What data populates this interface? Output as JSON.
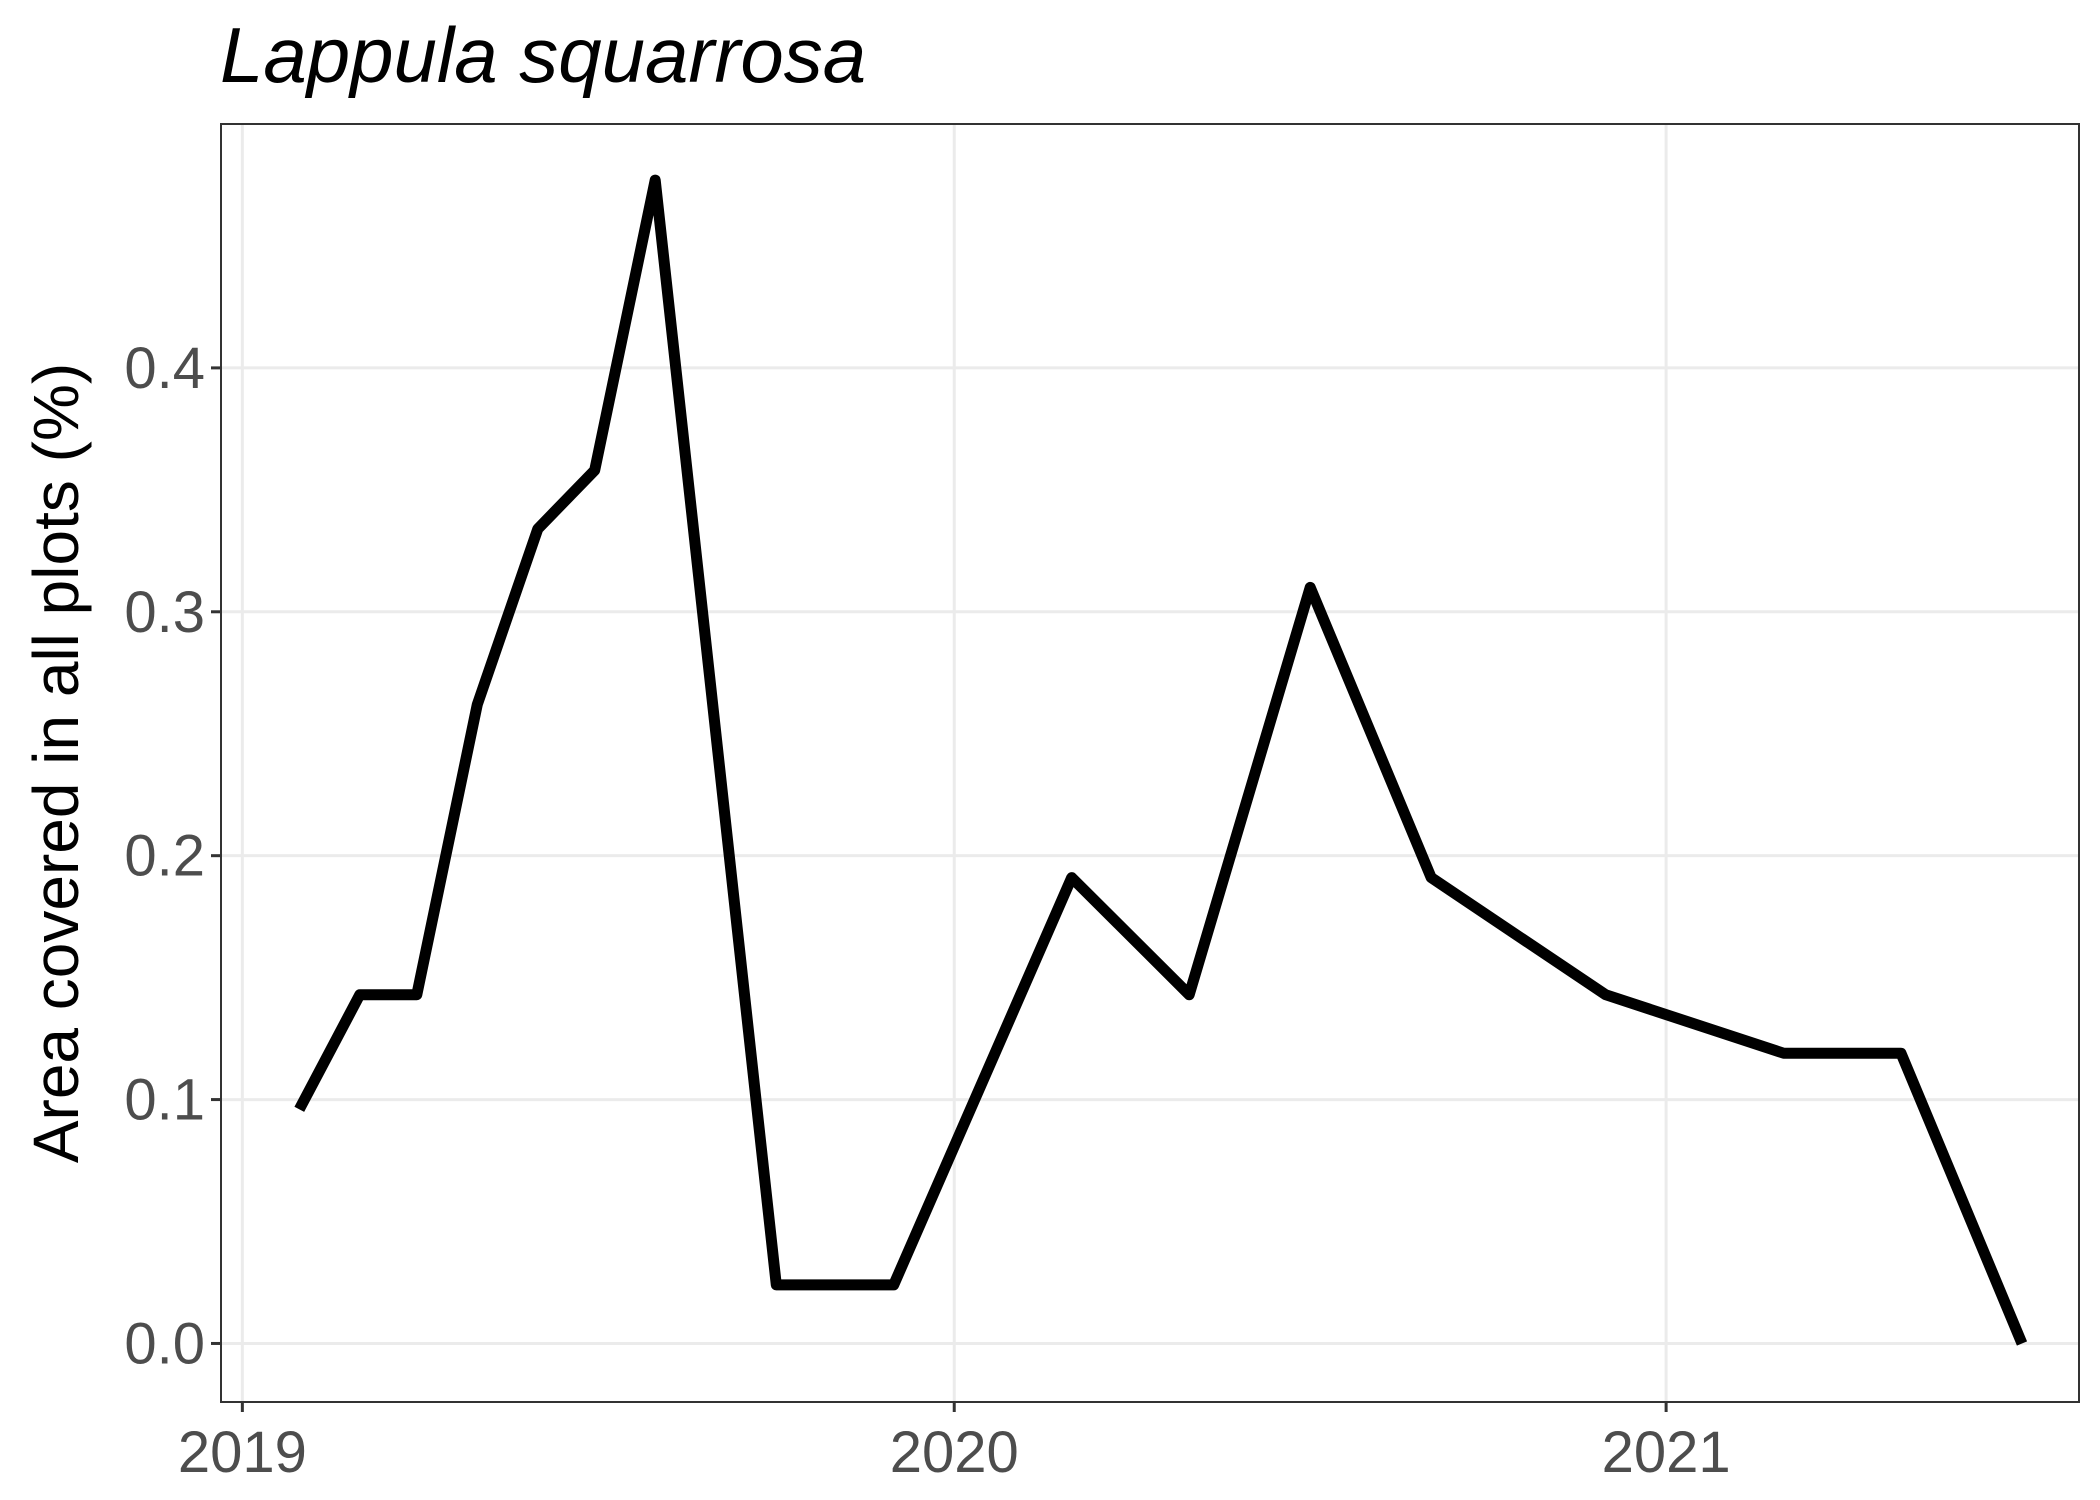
{
  "chart_data": {
    "type": "line",
    "title": "Lappula squarrosa",
    "xlabel": "",
    "ylabel": "Area covered in all plots (%)",
    "xlim": [
      2018.97,
      2021.58
    ],
    "ylim": [
      -0.024,
      0.5
    ],
    "x_ticks": [
      {
        "value": 2019,
        "label": "2019"
      },
      {
        "value": 2020,
        "label": "2020"
      },
      {
        "value": 2021,
        "label": "2021"
      }
    ],
    "y_ticks": [
      {
        "value": 0.0,
        "label": "0.0"
      },
      {
        "value": 0.1,
        "label": "0.1"
      },
      {
        "value": 0.2,
        "label": "0.2"
      },
      {
        "value": 0.3,
        "label": "0.3"
      },
      {
        "value": 0.4,
        "label": "0.4"
      }
    ],
    "grid": true,
    "legend": "none",
    "series": [
      {
        "color": "#000000",
        "x": [
          2019.08,
          2019.165,
          2019.245,
          2019.33,
          2019.415,
          2019.495,
          2019.58,
          2019.75,
          2019.915,
          2020.165,
          2020.33,
          2020.5,
          2020.67,
          2020.915,
          2021.165,
          2021.33,
          2021.5
        ],
        "y": [
          0.096,
          0.143,
          0.143,
          0.262,
          0.334,
          0.358,
          0.477,
          0.024,
          0.024,
          0.191,
          0.143,
          0.31,
          0.191,
          0.143,
          0.119,
          0.119,
          0.0
        ]
      }
    ]
  }
}
